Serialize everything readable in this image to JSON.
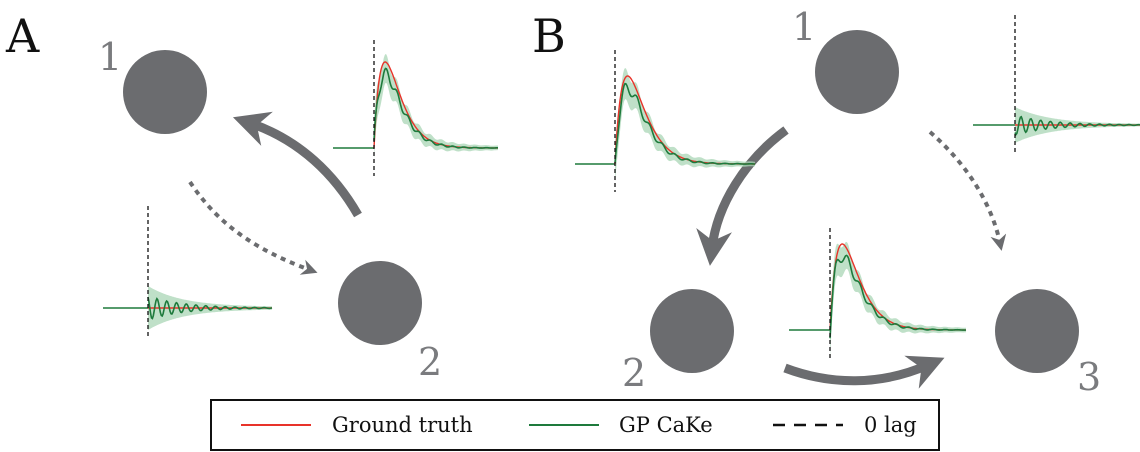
{
  "panels": [
    {
      "letter": "A",
      "nodes": [
        {
          "id": "A-1",
          "label": "1"
        },
        {
          "id": "A-2",
          "label": "2"
        }
      ]
    },
    {
      "letter": "B",
      "nodes": [
        {
          "id": "B-1",
          "label": "1"
        },
        {
          "id": "B-2",
          "label": "2"
        },
        {
          "id": "B-3",
          "label": "3"
        }
      ]
    }
  ],
  "legend": {
    "entries": [
      {
        "label": "Ground truth",
        "style": "solid",
        "color": "#e8332a"
      },
      {
        "label": "GP CaKe",
        "style": "solid",
        "color": "#1e7a3c"
      },
      {
        "label": "0 lag",
        "style": "dashed",
        "color": "#111111"
      }
    ]
  },
  "colors": {
    "node": "#6b6c6f",
    "arrow": "#6b6c6f",
    "ground_truth": "#e8332a",
    "gp_cake": "#1e7a3c",
    "band": "#a9d6b6"
  },
  "kernel_types": {
    "effective": "peaked response after zero lag",
    "null": "oscillating near zero"
  }
}
